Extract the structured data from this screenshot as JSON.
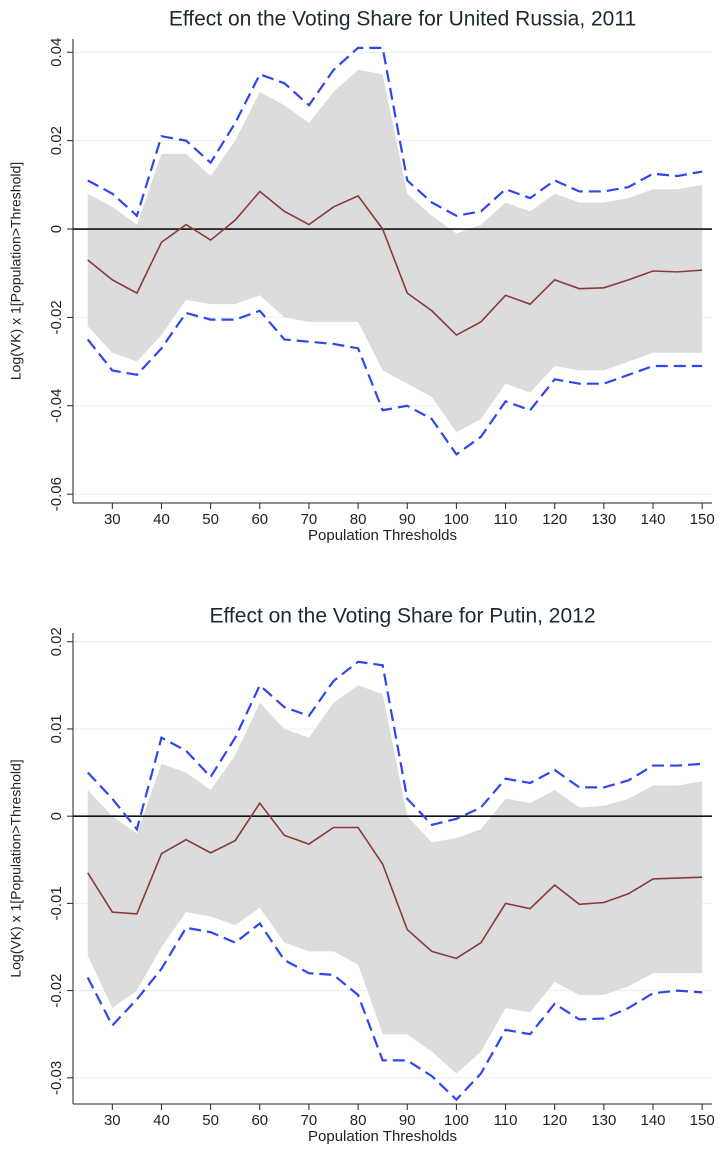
{
  "chart_data": [
    {
      "type": "band-line",
      "title": "Effect on the Voting Share for United Russia, 2011",
      "x_label": "Population Thresholds",
      "y_label": "Log(VK) x 1[Population>Threshold]",
      "x": [
        25,
        30,
        35,
        40,
        45,
        50,
        55,
        60,
        65,
        70,
        75,
        80,
        85,
        90,
        95,
        100,
        105,
        110,
        115,
        120,
        125,
        130,
        135,
        140,
        145,
        150
      ],
      "xlim": [
        22,
        152
      ],
      "xticks": [
        30,
        40,
        50,
        60,
        70,
        80,
        90,
        100,
        110,
        120,
        130,
        140,
        150
      ],
      "ylim": [
        -0.062,
        0.043
      ],
      "yticks": [
        -0.06,
        -0.04,
        -0.02,
        0,
        0.02,
        0.04
      ],
      "grid": true,
      "refline": 0,
      "bands": [
        {
          "color": "#dcdcdc",
          "upper": [
            0.008,
            0.005,
            0.001,
            0.017,
            0.017,
            0.012,
            0.02,
            0.031,
            0.028,
            0.024,
            0.031,
            0.036,
            0.035,
            0.008,
            0.003,
            -0.001,
            0.001,
            0.006,
            0.004,
            0.008,
            0.006,
            0.006,
            0.007,
            0.009,
            0.009,
            0.01
          ],
          "lower": [
            -0.022,
            -0.028,
            -0.03,
            -0.024,
            -0.016,
            -0.017,
            -0.017,
            -0.015,
            -0.02,
            -0.021,
            -0.021,
            -0.021,
            -0.032,
            -0.035,
            -0.038,
            -0.046,
            -0.043,
            -0.035,
            -0.037,
            -0.031,
            -0.032,
            -0.032,
            -0.03,
            -0.028,
            -0.028,
            -0.028
          ]
        }
      ],
      "series": [
        {
          "color": "#8b3a3a",
          "dashed": false,
          "values": [
            -0.007,
            -0.0115,
            -0.0145,
            -0.003,
            0.001,
            -0.0025,
            0.002,
            0.0085,
            0.004,
            0.001,
            0.005,
            0.0075,
            0.0,
            -0.0145,
            -0.0185,
            -0.024,
            -0.021,
            -0.015,
            -0.017,
            -0.0115,
            -0.0135,
            -0.0133,
            -0.0115,
            -0.0095,
            -0.0097,
            -0.0093
          ]
        },
        {
          "color": "#2f45f0",
          "dashed": true,
          "values": [
            0.011,
            0.008,
            0.003,
            0.021,
            0.02,
            0.015,
            0.024,
            0.035,
            0.033,
            0.028,
            0.036,
            0.041,
            0.041,
            0.011,
            0.006,
            0.003,
            0.004,
            0.009,
            0.007,
            0.011,
            0.0085,
            0.0085,
            0.0095,
            0.0125,
            0.012,
            0.013
          ]
        },
        {
          "color": "#2f45f0",
          "dashed": true,
          "values": [
            -0.025,
            -0.032,
            -0.033,
            -0.027,
            -0.019,
            -0.0205,
            -0.0205,
            -0.0185,
            -0.025,
            -0.0255,
            -0.026,
            -0.027,
            -0.041,
            -0.04,
            -0.043,
            -0.051,
            -0.047,
            -0.039,
            -0.041,
            -0.034,
            -0.035,
            -0.035,
            -0.033,
            -0.031,
            -0.031,
            -0.031
          ]
        }
      ]
    },
    {
      "type": "band-line",
      "title": "Effect on the Voting Share for Putin, 2012",
      "x_label": "Population Thresholds",
      "y_label": "Log(VK) x 1[Population>Threshold]",
      "x": [
        25,
        30,
        35,
        40,
        45,
        50,
        55,
        60,
        65,
        70,
        75,
        80,
        85,
        90,
        95,
        100,
        105,
        110,
        115,
        120,
        125,
        130,
        135,
        140,
        145,
        150
      ],
      "xlim": [
        22,
        152
      ],
      "xticks": [
        30,
        40,
        50,
        60,
        70,
        80,
        90,
        100,
        110,
        120,
        130,
        140,
        150
      ],
      "ylim": [
        -0.033,
        0.021
      ],
      "yticks": [
        -0.03,
        -0.02,
        -0.01,
        0,
        0.01,
        0.02
      ],
      "grid": true,
      "refline": 0,
      "bands": [
        {
          "color": "#dcdcdc",
          "upper": [
            0.003,
            0.0,
            -0.002,
            0.006,
            0.005,
            0.003,
            0.007,
            0.013,
            0.01,
            0.009,
            0.013,
            0.015,
            0.014,
            0.0,
            -0.003,
            -0.0025,
            -0.0015,
            0.002,
            0.0015,
            0.003,
            0.001,
            0.0012,
            0.002,
            0.0035,
            0.0035,
            0.004
          ],
          "lower": [
            -0.016,
            -0.022,
            -0.02,
            -0.015,
            -0.011,
            -0.0115,
            -0.0125,
            -0.0105,
            -0.0145,
            -0.0155,
            -0.0155,
            -0.017,
            -0.025,
            -0.025,
            -0.027,
            -0.0295,
            -0.027,
            -0.022,
            -0.0225,
            -0.019,
            -0.0205,
            -0.0205,
            -0.0195,
            -0.018,
            -0.018,
            -0.018
          ]
        }
      ],
      "series": [
        {
          "color": "#8b3a3a",
          "dashed": false,
          "values": [
            -0.0065,
            -0.011,
            -0.0112,
            -0.0043,
            -0.0027,
            -0.0042,
            -0.0028,
            0.0015,
            -0.0022,
            -0.0032,
            -0.0013,
            -0.0013,
            -0.0055,
            -0.013,
            -0.0155,
            -0.0163,
            -0.0145,
            -0.01,
            -0.0106,
            -0.0079,
            -0.0101,
            -0.0099,
            -0.0089,
            -0.0072,
            -0.0071,
            -0.007
          ]
        },
        {
          "color": "#2f45f0",
          "dashed": true,
          "values": [
            0.005,
            0.002,
            -0.0015,
            0.009,
            0.0075,
            0.0045,
            0.009,
            0.015,
            0.0125,
            0.0115,
            0.0155,
            0.0177,
            0.0173,
            0.002,
            -0.001,
            -0.0003,
            0.001,
            0.0043,
            0.0038,
            0.0053,
            0.0033,
            0.0033,
            0.0041,
            0.0058,
            0.0058,
            0.006
          ]
        },
        {
          "color": "#2f45f0",
          "dashed": true,
          "values": [
            -0.0185,
            -0.024,
            -0.021,
            -0.0175,
            -0.0128,
            -0.0133,
            -0.0145,
            -0.0123,
            -0.0165,
            -0.018,
            -0.0182,
            -0.0205,
            -0.028,
            -0.028,
            -0.0298,
            -0.0325,
            -0.0295,
            -0.0245,
            -0.025,
            -0.0215,
            -0.0233,
            -0.0232,
            -0.022,
            -0.0203,
            -0.02,
            -0.0202
          ]
        }
      ]
    }
  ]
}
